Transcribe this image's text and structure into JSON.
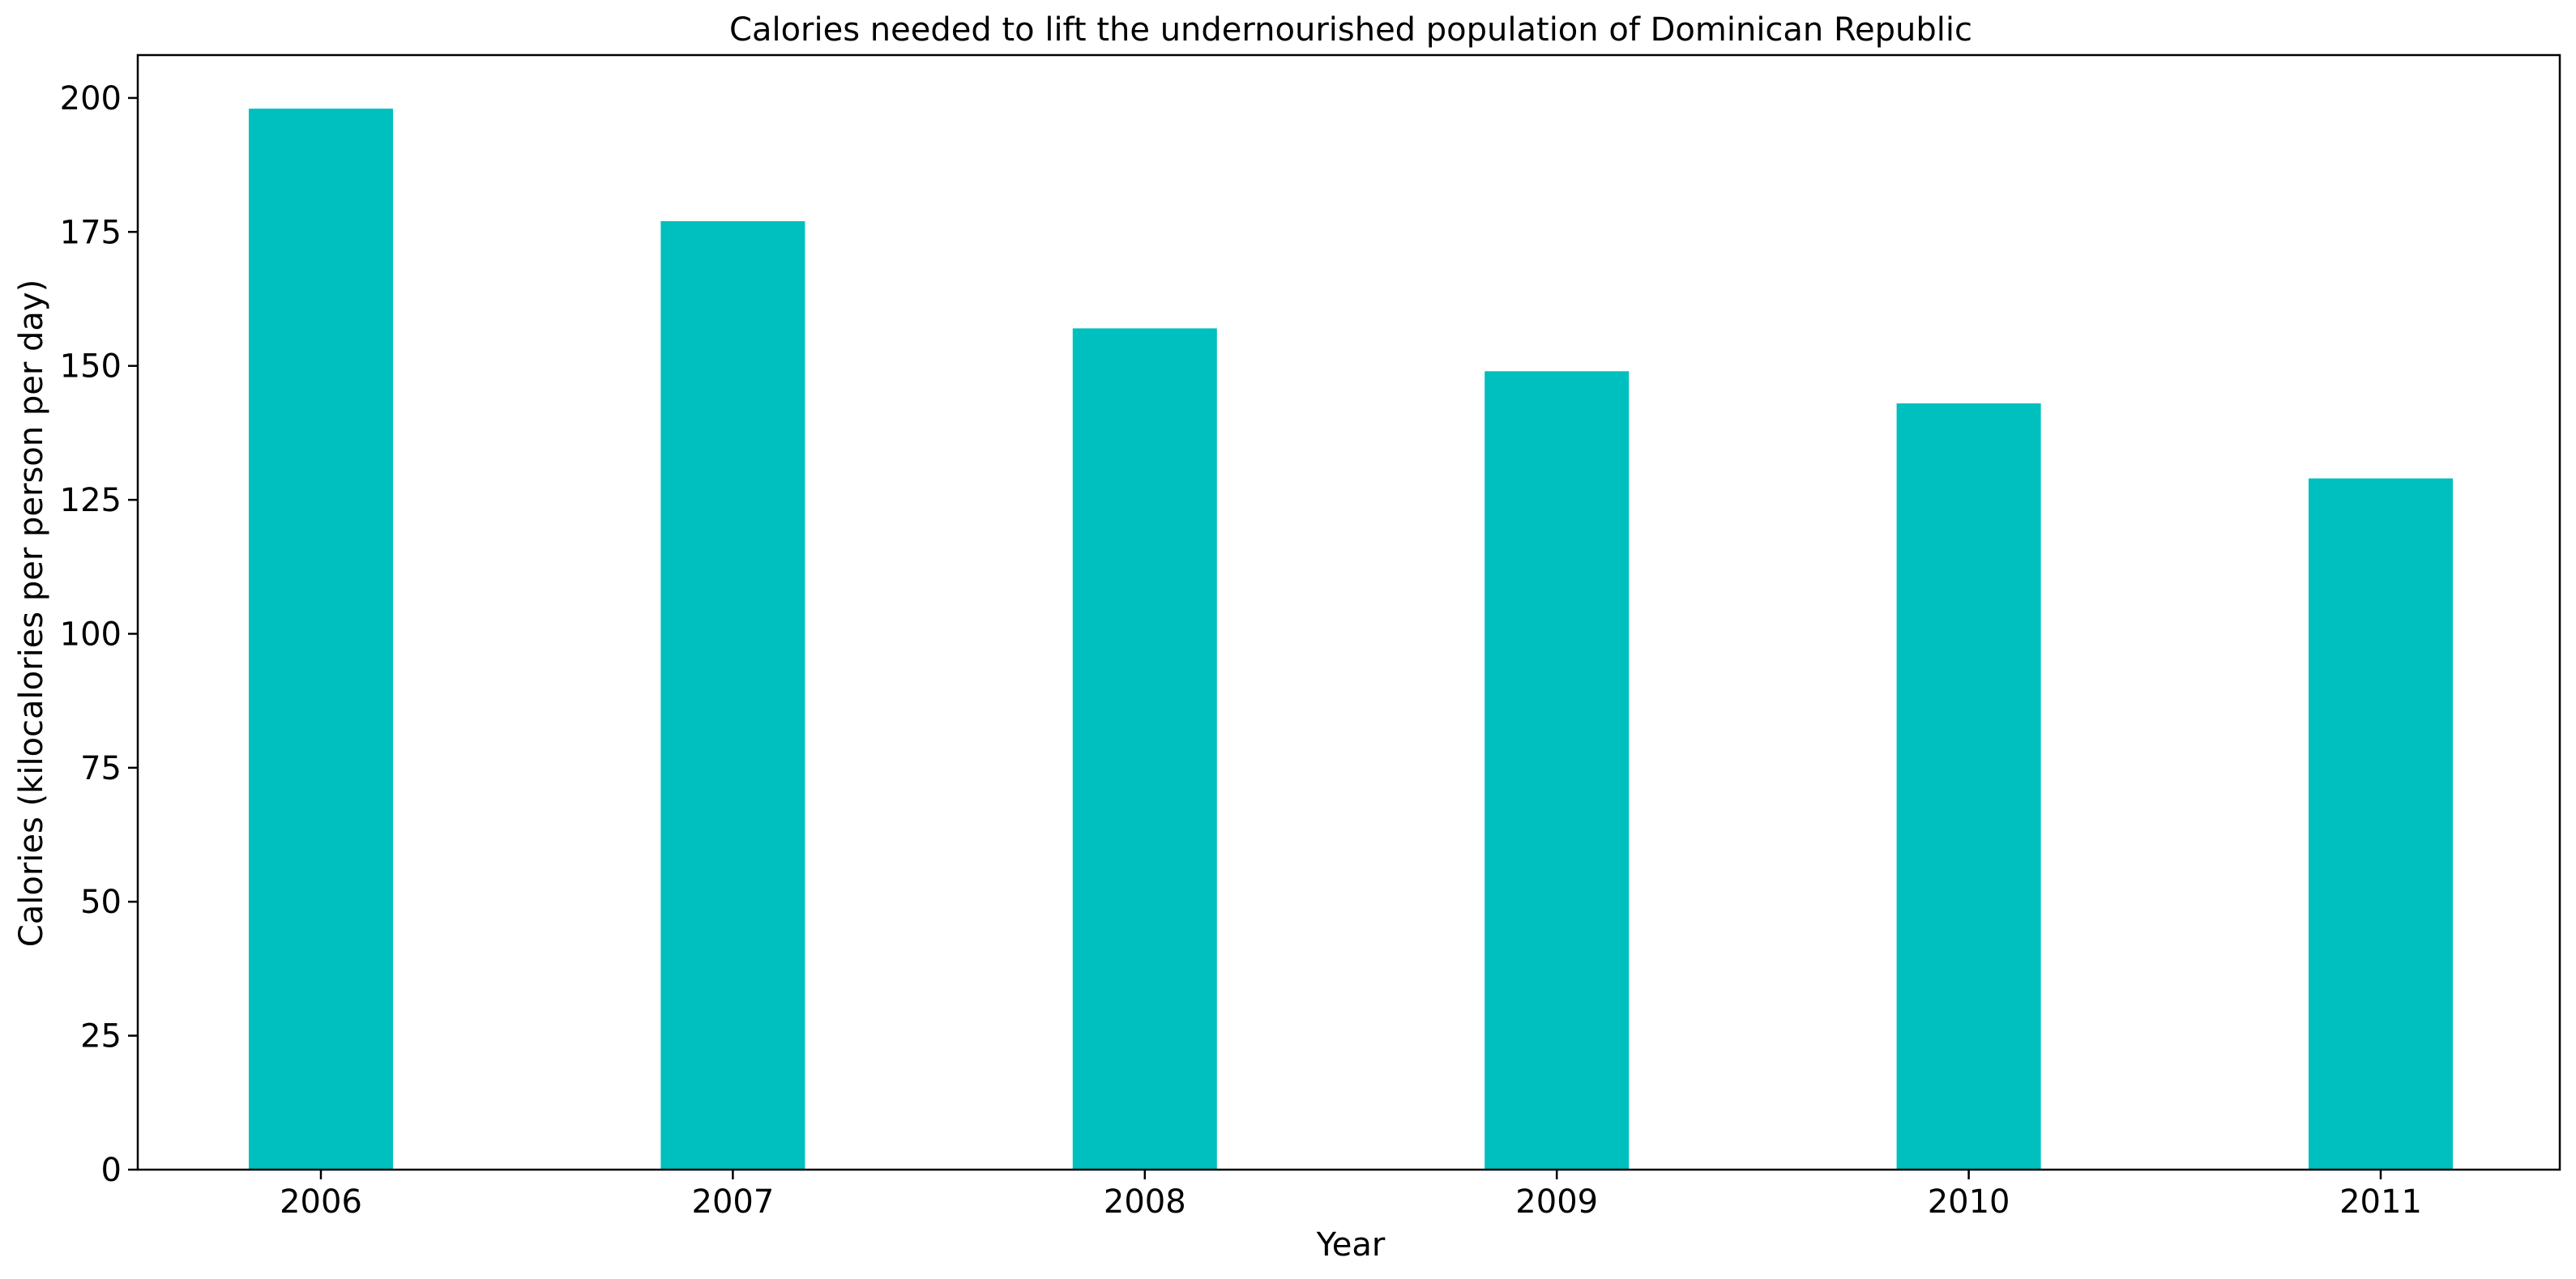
{
  "chart_data": {
    "type": "bar",
    "title": "Calories needed to lift the undernourished population of Dominican Republic",
    "xlabel": "Year",
    "ylabel": "Calories (kilocalories per person per day)",
    "categories": [
      "2006",
      "2007",
      "2008",
      "2009",
      "2010",
      "2011"
    ],
    "values": [
      198,
      177,
      157,
      149,
      143,
      129
    ],
    "ylim": [
      0,
      208
    ],
    "yticks": [
      0,
      25,
      50,
      75,
      100,
      125,
      150,
      175,
      200
    ],
    "ytick_labels": [
      "0",
      "25",
      "50",
      "75",
      "100",
      "125",
      "150",
      "175",
      "200"
    ],
    "bar_color": "#00bfbf",
    "grid": false,
    "legend": "none"
  }
}
